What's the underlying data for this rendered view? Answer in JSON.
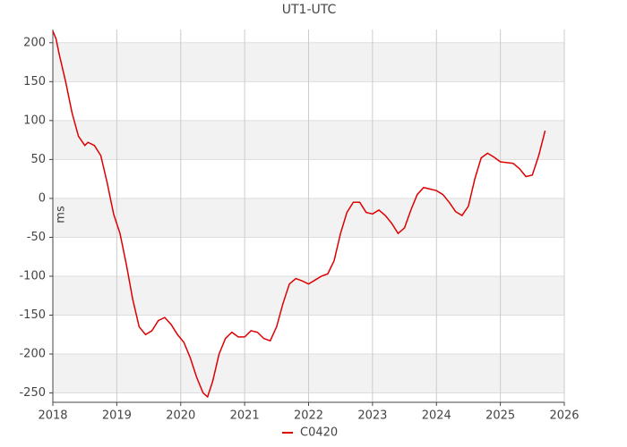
{
  "chart_data": {
    "type": "line",
    "title": "UT1-UTC",
    "y_label": "ms",
    "x": [
      2018.0,
      2018.05,
      2018.1,
      2018.2,
      2018.3,
      2018.4,
      2018.5,
      2018.55,
      2018.65,
      2018.75,
      2018.85,
      2018.95,
      2019.05,
      2019.15,
      2019.25,
      2019.35,
      2019.45,
      2019.55,
      2019.65,
      2019.75,
      2019.85,
      2019.95,
      2020.05,
      2020.15,
      2020.25,
      2020.35,
      2020.42,
      2020.5,
      2020.6,
      2020.7,
      2020.8,
      2020.9,
      2021.0,
      2021.1,
      2021.2,
      2021.3,
      2021.4,
      2021.5,
      2021.6,
      2021.7,
      2021.8,
      2021.9,
      2022.0,
      2022.1,
      2022.2,
      2022.3,
      2022.4,
      2022.5,
      2022.6,
      2022.7,
      2022.8,
      2022.9,
      2023.0,
      2023.1,
      2023.2,
      2023.3,
      2023.4,
      2023.5,
      2023.6,
      2023.7,
      2023.8,
      2023.9,
      2024.0,
      2024.1,
      2024.2,
      2024.3,
      2024.4,
      2024.5,
      2024.6,
      2024.7,
      2024.8,
      2024.9,
      2025.0,
      2025.1,
      2025.2,
      2025.3,
      2025.4,
      2025.5,
      2025.6,
      2025.7
    ],
    "series": [
      {
        "name": "C0420",
        "color": "#dd0000",
        "values": [
          215,
          205,
          185,
          150,
          110,
          80,
          68,
          72,
          68,
          55,
          20,
          -20,
          -45,
          -85,
          -130,
          -165,
          -175,
          -170,
          -157,
          -153,
          -162,
          -175,
          -185,
          -205,
          -230,
          -250,
          -255,
          -235,
          -200,
          -180,
          -172,
          -178,
          -178,
          -170,
          -172,
          -180,
          -183,
          -165,
          -135,
          -110,
          -103,
          -106,
          -110,
          -105,
          -100,
          -97,
          -80,
          -45,
          -18,
          -5,
          -5,
          -18,
          -20,
          -15,
          -22,
          -32,
          -45,
          -38,
          -15,
          5,
          14,
          12,
          10,
          5,
          -5,
          -17,
          -22,
          -10,
          25,
          52,
          58,
          53,
          47,
          46,
          45,
          38,
          28,
          30,
          55,
          87
        ]
      }
    ],
    "xlim": [
      2018,
      2026
    ],
    "xticks": [
      2018,
      2019,
      2020,
      2021,
      2022,
      2023,
      2024,
      2025,
      2026
    ],
    "ylim": [
      -262,
      217
    ],
    "yticks": [
      -250,
      -200,
      -150,
      -100,
      -50,
      0,
      50,
      100,
      150,
      200
    ],
    "grid": true,
    "alternate_bands": true,
    "legend": "bottom"
  }
}
